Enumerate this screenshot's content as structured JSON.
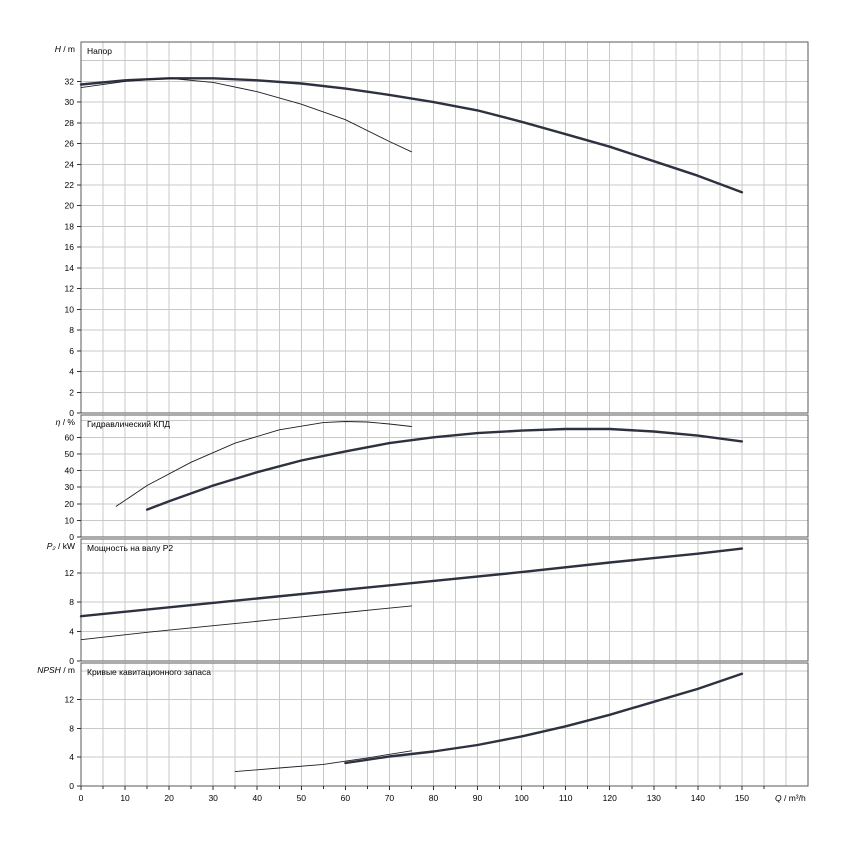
{
  "chart_data": [
    {
      "type": "line",
      "title": "Напор",
      "ylabel_var": "H",
      "ylabel_unit": " / m",
      "ylim": [
        0,
        35.8
      ],
      "yticks": [
        0,
        2,
        4,
        6,
        8,
        10,
        12,
        14,
        16,
        18,
        20,
        22,
        24,
        26,
        28,
        30,
        32
      ],
      "series": [
        {
          "style": "thick",
          "x": [
            0,
            10,
            20,
            30,
            40,
            50,
            60,
            70,
            80,
            90,
            100,
            110,
            120,
            130,
            140,
            150
          ],
          "y": [
            31.7,
            32.1,
            32.3,
            32.3,
            32.1,
            31.8,
            31.3,
            30.7,
            30.0,
            29.2,
            28.1,
            26.9,
            25.7,
            24.3,
            22.9,
            21.3
          ]
        },
        {
          "style": "thin",
          "x": [
            0,
            10,
            20,
            30,
            40,
            50,
            60,
            70,
            75
          ],
          "y": [
            31.4,
            32.0,
            32.3,
            31.9,
            31.0,
            29.8,
            28.3,
            26.2,
            25.2
          ]
        }
      ]
    },
    {
      "type": "line",
      "title": "Гидравлический КПД",
      "ylabel_var": "η",
      "ylabel_unit": " / %",
      "ylim": [
        0,
        73.4
      ],
      "yticks": [
        0,
        10,
        20,
        30,
        40,
        50,
        60
      ],
      "series": [
        {
          "style": "thick",
          "x": [
            15,
            20,
            30,
            40,
            50,
            60,
            70,
            80,
            90,
            100,
            110,
            120,
            130,
            140,
            150
          ],
          "y": [
            16.5,
            21.5,
            31.0,
            39.0,
            46.0,
            51.5,
            56.5,
            60.0,
            62.5,
            64.0,
            65.0,
            65.0,
            63.5,
            61.0,
            57.5
          ]
        },
        {
          "style": "thin",
          "x": [
            8,
            15,
            25,
            35,
            45,
            55,
            60,
            65,
            70,
            75
          ],
          "y": [
            18.5,
            31.0,
            45.0,
            56.5,
            64.5,
            68.8,
            69.5,
            69.2,
            68.0,
            66.5
          ]
        }
      ]
    },
    {
      "type": "line",
      "title": "Мощность на валу P2",
      "ylabel_var": "P₂",
      "ylabel_unit": " / kW",
      "ylim": [
        0,
        16.6
      ],
      "yticks": [
        0,
        4,
        8,
        12
      ],
      "series": [
        {
          "style": "thick",
          "x": [
            0,
            20,
            40,
            60,
            80,
            100,
            120,
            140,
            150
          ],
          "y": [
            6.1,
            7.3,
            8.5,
            9.7,
            10.9,
            12.1,
            13.4,
            14.6,
            15.3
          ]
        },
        {
          "style": "thin",
          "x": [
            0,
            15,
            30,
            45,
            60,
            75
          ],
          "y": [
            2.9,
            3.9,
            4.8,
            5.7,
            6.6,
            7.5
          ]
        }
      ]
    },
    {
      "type": "line",
      "title": "Кривые кавитационного запаса",
      "ylabel_var": "NPSH",
      "ylabel_unit": " / m",
      "ylim": [
        0,
        17.1
      ],
      "yticks": [
        0,
        4,
        8,
        12
      ],
      "series": [
        {
          "style": "thick",
          "x": [
            60,
            70,
            80,
            90,
            100,
            110,
            120,
            130,
            140,
            150
          ],
          "y": [
            3.2,
            4.1,
            4.8,
            5.7,
            6.9,
            8.3,
            9.9,
            11.7,
            13.5,
            15.6
          ]
        },
        {
          "style": "thin",
          "x": [
            35,
            45,
            55,
            65,
            75
          ],
          "y": [
            2.0,
            2.5,
            3.0,
            3.9,
            4.9
          ]
        }
      ]
    }
  ],
  "x_axis": {
    "var": "Q",
    "unit": " / m³/h",
    "xlim": [
      0,
      165
    ],
    "ticks": [
      0,
      10,
      20,
      30,
      40,
      50,
      60,
      70,
      80,
      90,
      100,
      110,
      120,
      130,
      140,
      150
    ]
  },
  "grid": true
}
